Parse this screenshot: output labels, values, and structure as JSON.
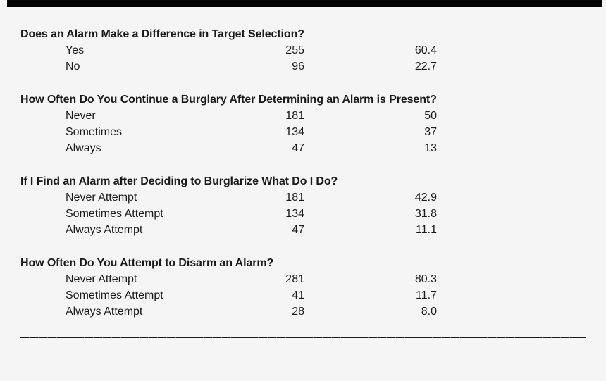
{
  "colors": {
    "background": "#f5f5f5",
    "text": "#1a1a1a",
    "top_bar": "#030303",
    "rule": "#1c1c1c"
  },
  "document": {
    "sections": [
      {
        "heading": "Does an Alarm Make a Difference in Target Selection?",
        "rows": [
          {
            "label": "Yes",
            "count": "255",
            "percent": "60.4"
          },
          {
            "label": "No",
            "count": "96",
            "percent": "22.7"
          }
        ]
      },
      {
        "heading": "How Often Do You Continue a Burglary After Determining an Alarm is Present?",
        "rows": [
          {
            "label": "Never",
            "count": "181",
            "percent": "50"
          },
          {
            "label": "Sometimes",
            "count": "134",
            "percent": "37"
          },
          {
            "label": "Always",
            "count": "47",
            "percent": "13"
          }
        ]
      },
      {
        "heading": "If I Find an Alarm after Deciding to Burglarize What Do I Do?",
        "rows": [
          {
            "label": "Never Attempt",
            "count": "181",
            "percent": "42.9"
          },
          {
            "label": "Sometimes Attempt",
            "count": "134",
            "percent": "31.8"
          },
          {
            "label": "Always Attempt",
            "count": "47",
            "percent": "11.1"
          }
        ]
      },
      {
        "heading": "How Often Do You Attempt to Disarm an Alarm?",
        "rows": [
          {
            "label": "Never Attempt",
            "count": "281",
            "percent": "80.3"
          },
          {
            "label": "Sometimes Attempt",
            "count": "41",
            "percent": "11.7"
          },
          {
            "label": "Always Attempt",
            "count": "28",
            "percent": "8.0"
          }
        ]
      }
    ]
  }
}
